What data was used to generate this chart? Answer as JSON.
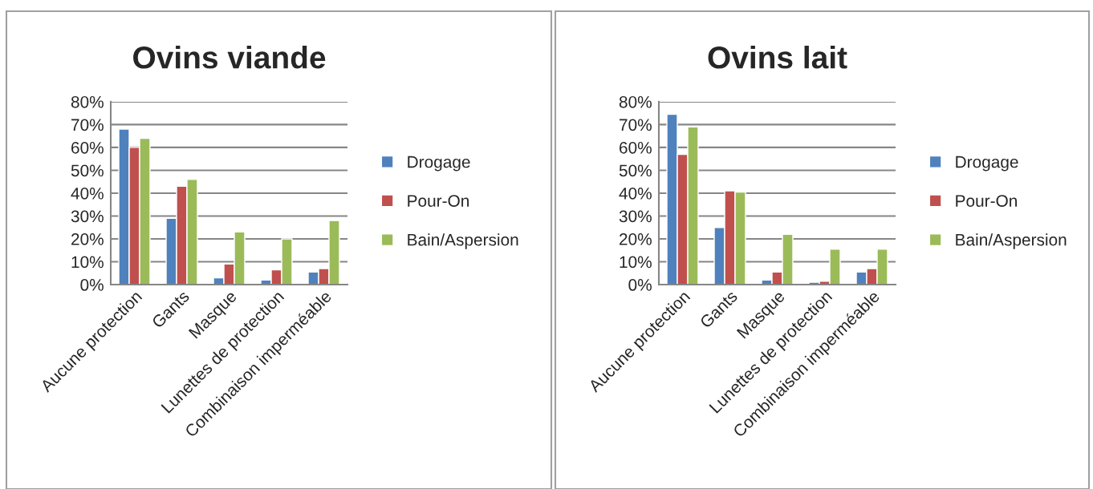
{
  "chart_data": [
    {
      "type": "bar",
      "title": "Ovins viande",
      "categories": [
        "Aucune protection",
        "Gants",
        "Masque",
        "Lunettes de protection",
        "Combinaison imperméable"
      ],
      "series": [
        {
          "name": "Drogage",
          "color": "#4f81bd",
          "values": [
            68,
            29,
            3,
            2,
            5.5
          ]
        },
        {
          "name": "Pour-On",
          "color": "#c0504d",
          "values": [
            60,
            43,
            9,
            6.5,
            7
          ]
        },
        {
          "name": "Bain/Aspersion",
          "color": "#9bbb59",
          "values": [
            64,
            46,
            23,
            20,
            28
          ]
        }
      ],
      "ylim": [
        0,
        80
      ],
      "yticks": [
        {
          "value": 0,
          "label": "0%"
        },
        {
          "value": 10,
          "label": "10%"
        },
        {
          "value": 20,
          "label": "20%"
        },
        {
          "value": 30,
          "label": "30%"
        },
        {
          "value": 40,
          "label": "40%"
        },
        {
          "value": 50,
          "label": "50%"
        },
        {
          "value": 60,
          "label": "60%"
        },
        {
          "value": 70,
          "label": "70%"
        },
        {
          "value": 80,
          "label": "80%"
        }
      ],
      "grid": "y",
      "legend": "right"
    },
    {
      "type": "bar",
      "title": "Ovins lait",
      "categories": [
        "Aucune protection",
        "Gants",
        "Masque",
        "Lunettes de protection",
        "Combinaison imperméable"
      ],
      "series": [
        {
          "name": "Drogage",
          "color": "#4f81bd",
          "values": [
            74.5,
            25,
            2,
            1,
            5.5
          ]
        },
        {
          "name": "Pour-On",
          "color": "#c0504d",
          "values": [
            57,
            41,
            5.5,
            1.5,
            7
          ]
        },
        {
          "name": "Bain/Aspersion",
          "color": "#9bbb59",
          "values": [
            69,
            40.5,
            22,
            15.5,
            15.5
          ]
        }
      ],
      "ylim": [
        0,
        80
      ],
      "yticks": [
        {
          "value": 0,
          "label": "0%"
        },
        {
          "value": 10,
          "label": "10%"
        },
        {
          "value": 20,
          "label": "20%"
        },
        {
          "value": 30,
          "label": "30%"
        },
        {
          "value": 40,
          "label": "40%"
        },
        {
          "value": 50,
          "label": "50%"
        },
        {
          "value": 60,
          "label": "60%"
        },
        {
          "value": 70,
          "label": "70%"
        },
        {
          "value": 80,
          "label": "80%"
        }
      ],
      "grid": "y",
      "legend": "right"
    }
  ]
}
